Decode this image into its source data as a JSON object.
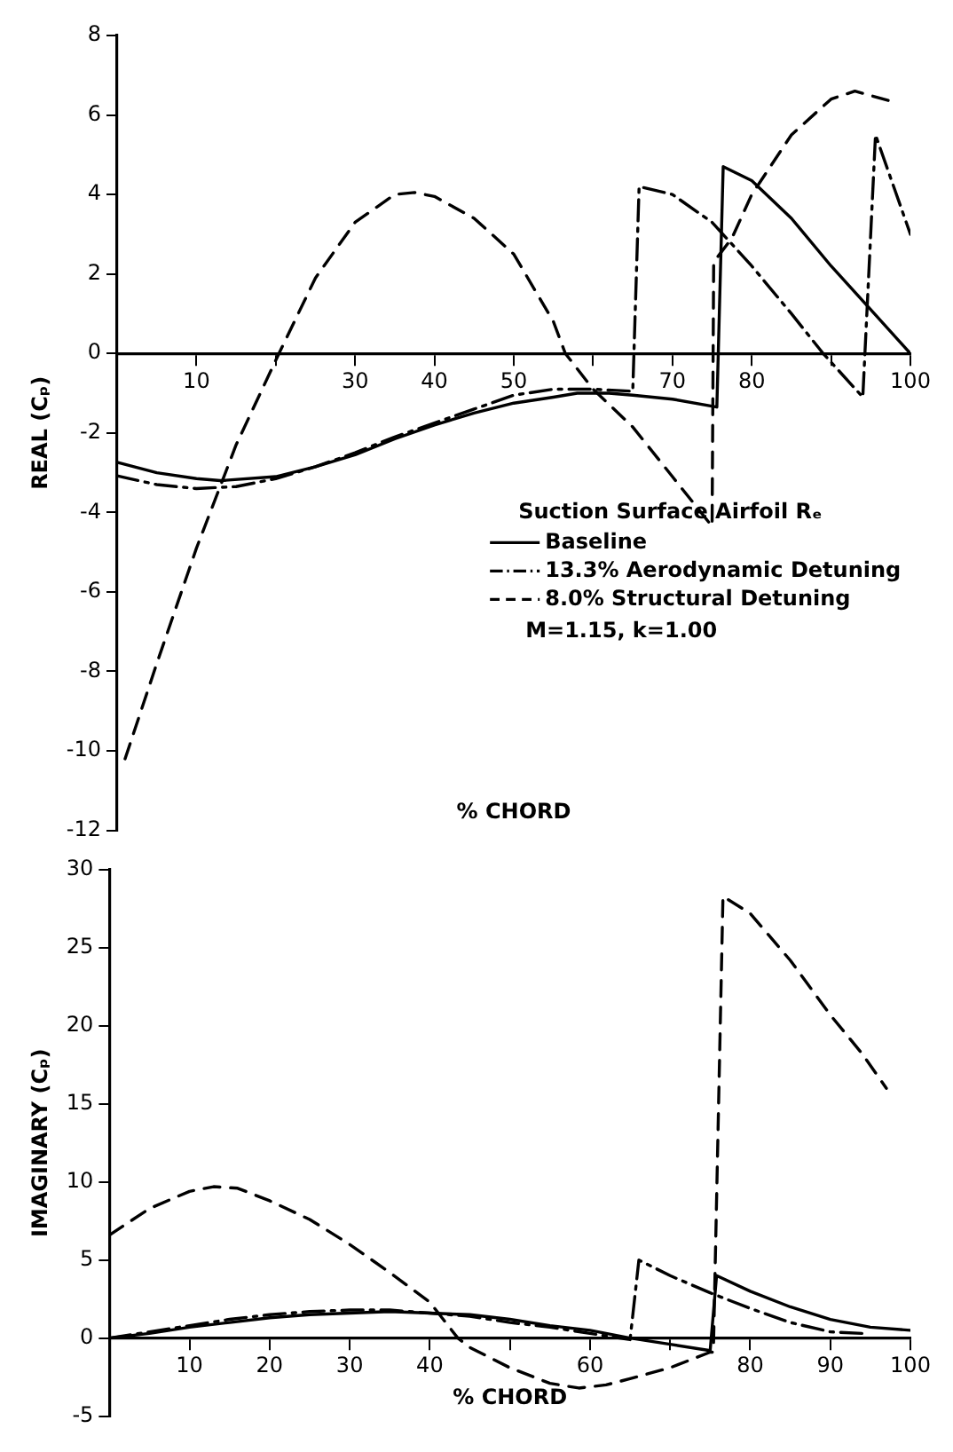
{
  "chart_data": [
    {
      "type": "line",
      "xlabel": "% CHORD",
      "ylabel": "REAL (Cₚ)",
      "legend_title": "Suction Surface Airfoil Rₑ",
      "legend": "bottom right",
      "grid": false,
      "xlim": [
        0,
        100
      ],
      "ylim": [
        -12,
        8
      ],
      "xticks": [
        {
          "value": 0,
          "label": null
        },
        10,
        {
          "value": 20,
          "label": null
        },
        30,
        40,
        50,
        {
          "value": 60,
          "label": null
        },
        70,
        80,
        {
          "value": 90,
          "label": null
        },
        100
      ],
      "yticks": [
        -12,
        -10,
        -8,
        -6,
        -4,
        -2,
        0,
        2,
        4,
        6,
        8
      ],
      "annotations": [
        "M=1.15, k=1.00"
      ],
      "series": [
        {
          "name": "Baseline",
          "color": "#000000",
          "line_style": "solid",
          "x": [
            0,
            5,
            10,
            13,
            20,
            25,
            30,
            35,
            40,
            45,
            50,
            55,
            58,
            62,
            65,
            70,
            75.6,
            76.4,
            80,
            85,
            90,
            95,
            100
          ],
          "values": [
            -2.74,
            -3.0,
            -3.15,
            -3.2,
            -3.1,
            -2.85,
            -2.55,
            -2.15,
            -1.8,
            -1.5,
            -1.25,
            -1.1,
            -1.0,
            -1.0,
            -1.05,
            -1.15,
            -1.35,
            4.7,
            4.35,
            3.4,
            2.2,
            1.1,
            0
          ]
        },
        {
          "name": "13.3% Aerodynamic Detuning",
          "color": "#000000",
          "line_style": "dashdot",
          "x": [
            0,
            5,
            10,
            15,
            20,
            25,
            30,
            35,
            40,
            45,
            50,
            55,
            60,
            65,
            65.8,
            70,
            75,
            80,
            85,
            89,
            94,
            95.6,
            100
          ],
          "values": [
            -3.08,
            -3.3,
            -3.4,
            -3.35,
            -3.15,
            -2.85,
            -2.5,
            -2.1,
            -1.75,
            -1.4,
            -1.05,
            -0.9,
            -0.9,
            -0.95,
            4.2,
            4.0,
            3.3,
            2.2,
            1.0,
            0,
            -1.1,
            5.5,
            3.0
          ]
        },
        {
          "name": "8.0% Structural Detuning",
          "color": "#000000",
          "line_style": "dashed",
          "x": [
            1,
            5,
            10,
            15,
            20.4,
            25,
            30,
            35,
            37.5,
            40,
            45,
            50,
            55,
            56.5,
            60,
            65,
            70,
            75,
            75.2,
            77.5,
            80,
            85,
            90,
            93,
            97.5
          ],
          "values": [
            -10.2,
            -7.8,
            -4.9,
            -2.3,
            0,
            1.9,
            3.3,
            4.0,
            4.05,
            3.95,
            3.4,
            2.5,
            0.8,
            0,
            -0.9,
            -1.85,
            -3.1,
            -4.35,
            2.3,
            2.9,
            4.0,
            5.5,
            6.4,
            6.6,
            6.35
          ]
        }
      ]
    },
    {
      "type": "line",
      "xlabel": "% CHORD",
      "ylabel": "IMAGINARY (Cₚ)",
      "grid": false,
      "xlim": [
        0,
        100
      ],
      "ylim": [
        -5,
        30
      ],
      "xticks": [
        {
          "value": 0,
          "label": null
        },
        10,
        20,
        30,
        40,
        {
          "value": 50,
          "label": null
        },
        60,
        {
          "value": 70,
          "label": null
        },
        80,
        90,
        100
      ],
      "yticks": [
        -5,
        0,
        5,
        10,
        15,
        20,
        25,
        30
      ],
      "series": [
        {
          "color": "#000000",
          "line_style": "solid",
          "x": [
            0,
            5,
            10,
            15,
            20,
            25,
            30,
            35,
            40,
            45,
            50,
            55,
            60,
            65,
            70,
            75,
            75.8,
            80,
            85,
            90,
            95,
            100
          ],
          "values": [
            0,
            0.3,
            0.7,
            1.0,
            1.3,
            1.5,
            1.6,
            1.7,
            1.6,
            1.5,
            1.2,
            0.8,
            0.5,
            0,
            -0.4,
            -0.8,
            4.0,
            3.0,
            2.0,
            1.2,
            0.7,
            0.5
          ]
        },
        {
          "color": "#000000",
          "line_style": "dashdot",
          "x": [
            0,
            5,
            10,
            15,
            20,
            25,
            30,
            35,
            40,
            45,
            50,
            55,
            60,
            65,
            66.1,
            70,
            75,
            80,
            85,
            90,
            94
          ],
          "values": [
            0,
            0.4,
            0.8,
            1.2,
            1.5,
            1.7,
            1.8,
            1.8,
            1.6,
            1.4,
            1.0,
            0.7,
            0.3,
            -0.1,
            5.0,
            4.0,
            2.9,
            1.9,
            1.0,
            0.4,
            0.3
          ]
        },
        {
          "color": "#000000",
          "line_style": "dashed",
          "x": [
            0,
            5,
            10,
            13,
            16,
            20,
            25,
            30,
            35,
            40,
            43.5,
            45,
            50,
            55,
            58.6,
            62,
            65,
            70,
            75,
            75.4,
            76.6,
            80,
            85,
            90,
            94,
            97
          ],
          "values": [
            6.6,
            8.3,
            9.4,
            9.7,
            9.6,
            8.8,
            7.6,
            6.0,
            4.2,
            2.3,
            0,
            -0.6,
            -1.9,
            -2.9,
            -3.2,
            -3.0,
            -2.6,
            -1.9,
            -0.9,
            -0.9,
            28.3,
            27.2,
            24.2,
            20.7,
            18.2,
            16.0
          ]
        }
      ]
    }
  ]
}
